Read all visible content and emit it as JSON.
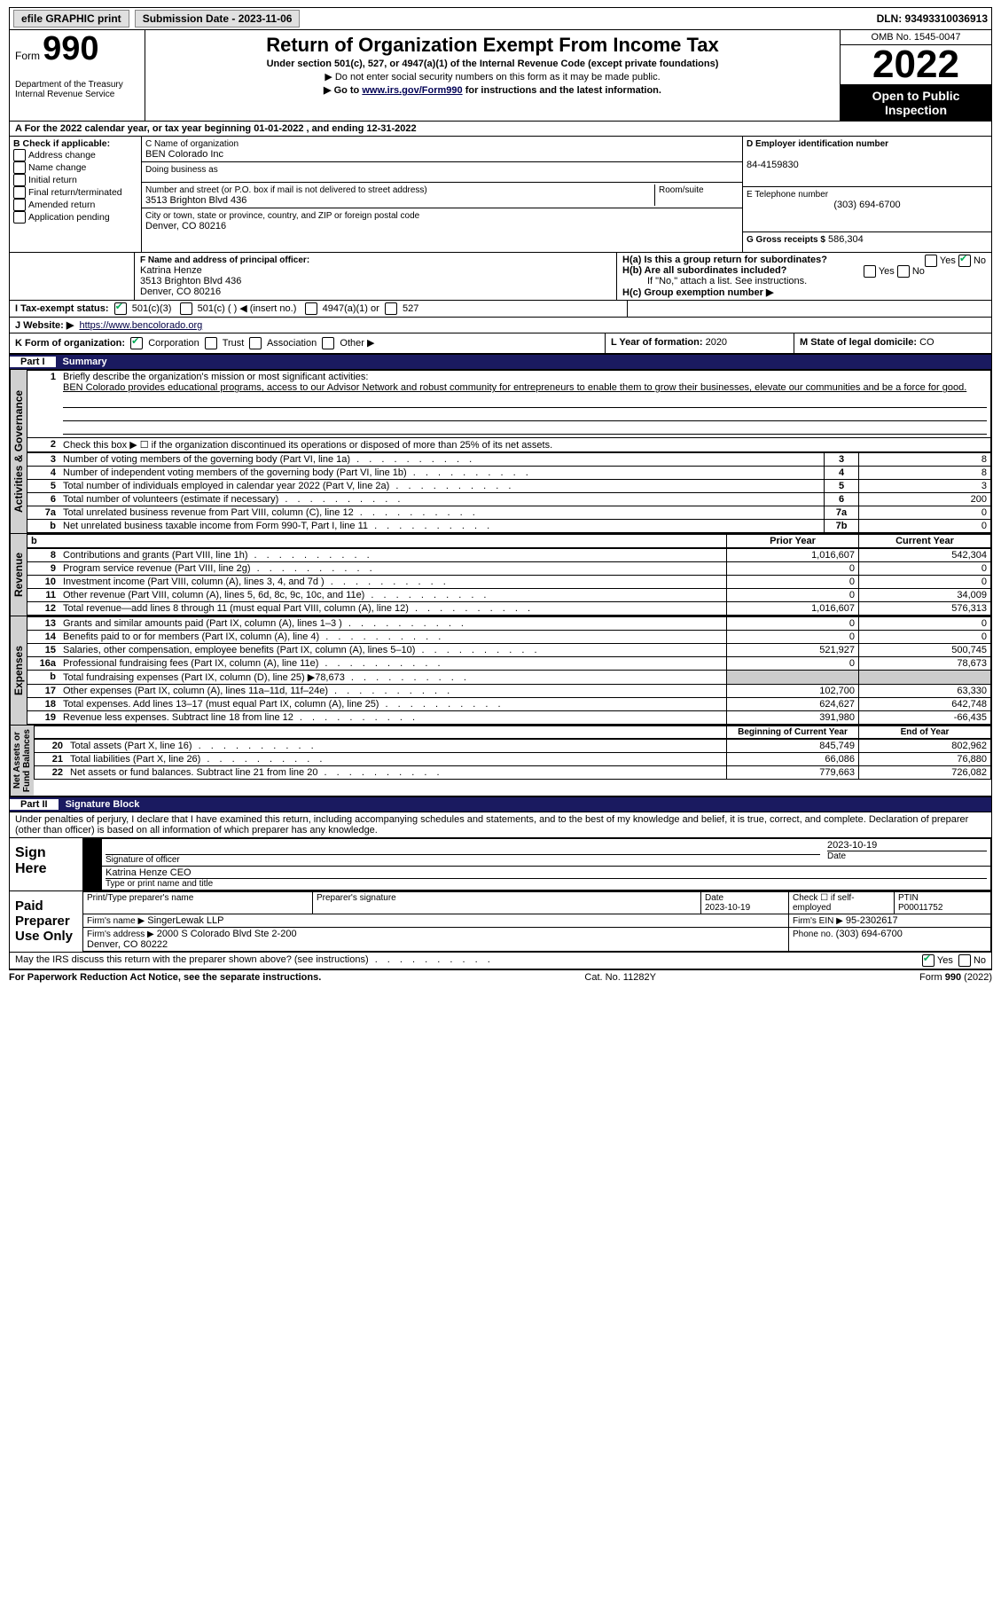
{
  "topbar": {
    "efile": "efile GRAPHIC print - ",
    "submission": "Submission Date - 2023-11-06",
    "dln": "DLN: 93493310036913"
  },
  "header": {
    "form_word": "Form",
    "form_no": "990",
    "title": "Return of Organization Exempt From Income Tax",
    "sub1": "Under section 501(c), 527, or 4947(a)(1) of the Internal Revenue Code (except private foundations)",
    "sub2": "▶ Do not enter social security numbers on this form as it may be made public.",
    "sub3_pre": "▶ Go to ",
    "sub3_link": "www.irs.gov/Form990",
    "sub3_post": " for instructions and the latest information.",
    "dept": "Department of the Treasury\nInternal Revenue Service",
    "omb": "OMB No. 1545-0047",
    "year": "2022",
    "otp": "Open to Public Inspection"
  },
  "A_line": "A For the 2022 calendar year, or tax year beginning 01-01-2022   , and ending 12-31-2022",
  "B": {
    "label": "B Check if applicable:",
    "opts": [
      "Address change",
      "Name change",
      "Initial return",
      "Final return/terminated",
      "Amended return",
      "Application pending"
    ]
  },
  "C": {
    "name_label": "C Name of organization",
    "name": "BEN Colorado Inc",
    "dba_label": "Doing business as",
    "dba": "",
    "addr_label": "Number and street (or P.O. box if mail is not delivered to street address)",
    "room_label": "Room/suite",
    "addr": "3513 Brighton Blvd 436",
    "city_label": "City or town, state or province, country, and ZIP or foreign postal code",
    "city": "Denver, CO  80216"
  },
  "D": {
    "label": "D Employer identification number",
    "val": "84-4159830"
  },
  "E": {
    "label": "E Telephone number",
    "val": "(303) 694-6700"
  },
  "G": {
    "label": "G Gross receipts $",
    "val": "586,304"
  },
  "F": {
    "label": "F  Name and address of principal officer:",
    "lines": [
      "Katrina Henze",
      "3513 Brighton Blvd 436",
      "Denver, CO  80216"
    ]
  },
  "H": {
    "a": "H(a)  Is this a group return for subordinates?",
    "b": "H(b)  Are all subordinates included?",
    "bnote": "If \"No,\" attach a list. See instructions.",
    "c": "H(c)  Group exemption number ▶"
  },
  "I": {
    "label": "I   Tax-exempt status:",
    "opts": [
      "501(c)(3)",
      "501(c) (    ) ◀ (insert no.)",
      "4947(a)(1) or",
      "527"
    ]
  },
  "J": {
    "label": "J   Website: ▶",
    "val": "https://www.bencolorado.org"
  },
  "K": {
    "label": "K Form of organization:",
    "opts": [
      "Corporation",
      "Trust",
      "Association",
      "Other ▶"
    ]
  },
  "L": {
    "label": "L Year of formation:",
    "val": "2020"
  },
  "M": {
    "label": "M State of legal domicile:",
    "val": "CO"
  },
  "part1": {
    "num": "Part I",
    "title": "Summary"
  },
  "summary": {
    "q1": "Briefly describe the organization's mission or most significant activities:",
    "q1v": "BEN Colorado provides educational programs, access to our Advisor Network and robust community for entrepreneurs to enable them to grow their businesses, elevate our communities and be a force for good.",
    "q2": "Check this box ▶ ☐  if the organization discontinued its operations or disposed of more than 25% of its net assets.",
    "lines": [
      {
        "n": "3",
        "t": "Number of voting members of the governing body (Part VI, line 1a)",
        "box": "3",
        "v": "8"
      },
      {
        "n": "4",
        "t": "Number of independent voting members of the governing body (Part VI, line 1b)",
        "box": "4",
        "v": "8"
      },
      {
        "n": "5",
        "t": "Total number of individuals employed in calendar year 2022 (Part V, line 2a)",
        "box": "5",
        "v": "3"
      },
      {
        "n": "6",
        "t": "Total number of volunteers (estimate if necessary)",
        "box": "6",
        "v": "200"
      },
      {
        "n": "7a",
        "t": "Total unrelated business revenue from Part VIII, column (C), line 12",
        "box": "7a",
        "v": "0"
      },
      {
        "n": "b",
        "t": "Net unrelated business taxable income from Form 990-T, Part I, line 11",
        "box": "7b",
        "v": "0"
      }
    ],
    "pcol": "Prior Year",
    "ccol": "Current Year",
    "rev": [
      {
        "n": "8",
        "t": "Contributions and grants (Part VIII, line 1h)",
        "p": "1,016,607",
        "c": "542,304"
      },
      {
        "n": "9",
        "t": "Program service revenue (Part VIII, line 2g)",
        "p": "0",
        "c": "0"
      },
      {
        "n": "10",
        "t": "Investment income (Part VIII, column (A), lines 3, 4, and 7d )",
        "p": "0",
        "c": "0"
      },
      {
        "n": "11",
        "t": "Other revenue (Part VIII, column (A), lines 5, 6d, 8c, 9c, 10c, and 11e)",
        "p": "0",
        "c": "34,009"
      },
      {
        "n": "12",
        "t": "Total revenue—add lines 8 through 11 (must equal Part VIII, column (A), line 12)",
        "p": "1,016,607",
        "c": "576,313"
      }
    ],
    "exp": [
      {
        "n": "13",
        "t": "Grants and similar amounts paid (Part IX, column (A), lines 1–3 )",
        "p": "0",
        "c": "0"
      },
      {
        "n": "14",
        "t": "Benefits paid to or for members (Part IX, column (A), line 4)",
        "p": "0",
        "c": "0"
      },
      {
        "n": "15",
        "t": "Salaries, other compensation, employee benefits (Part IX, column (A), lines 5–10)",
        "p": "521,927",
        "c": "500,745"
      },
      {
        "n": "16a",
        "t": "Professional fundraising fees (Part IX, column (A), line 11e)",
        "p": "0",
        "c": "78,673"
      },
      {
        "n": "b",
        "t": "Total fundraising expenses (Part IX, column (D), line 25) ▶78,673",
        "p": "",
        "c": "",
        "shaded": true
      },
      {
        "n": "17",
        "t": "Other expenses (Part IX, column (A), lines 11a–11d, 11f–24e)",
        "p": "102,700",
        "c": "63,330"
      },
      {
        "n": "18",
        "t": "Total expenses. Add lines 13–17 (must equal Part IX, column (A), line 25)",
        "p": "624,627",
        "c": "642,748"
      },
      {
        "n": "19",
        "t": "Revenue less expenses. Subtract line 18 from line 12",
        "p": "391,980",
        "c": "-66,435"
      }
    ],
    "bcol": "Beginning of Current Year",
    "ecol": "End of Year",
    "net": [
      {
        "n": "20",
        "t": "Total assets (Part X, line 16)",
        "p": "845,749",
        "c": "802,962"
      },
      {
        "n": "21",
        "t": "Total liabilities (Part X, line 26)",
        "p": "66,086",
        "c": "76,880"
      },
      {
        "n": "22",
        "t": "Net assets or fund balances. Subtract line 21 from line 20",
        "p": "779,663",
        "c": "726,082"
      }
    ],
    "vlabels": {
      "ag": "Activities & Governance",
      "rv": "Revenue",
      "ex": "Expenses",
      "na": "Net Assets or\nFund Balances"
    }
  },
  "part2": {
    "num": "Part II",
    "title": "Signature Block"
  },
  "sig": {
    "decl": "Under penalties of perjury, I declare that I have examined this return, including accompanying schedules and statements, and to the best of my knowledge and belief, it is true, correct, and complete. Declaration of preparer (other than officer) is based on all information of which preparer has any knowledge.",
    "sign_here": "Sign Here",
    "sig_officer": "Signature of officer",
    "date1": "2023-10-19",
    "name_title": "Katrina Henze  CEO",
    "type_print": "Type or print name and title",
    "paid": "Paid Preparer Use Only",
    "pp_name": "Print/Type preparer's name",
    "pp_sig": "Preparer's signature",
    "pp_date_l": "Date",
    "pp_date": "2023-10-19",
    "pp_check": "Check ☐ if self-employed",
    "ptin_l": "PTIN",
    "ptin": "P00011752",
    "firm_name_l": "Firm's name   ▶",
    "firm_name": "SingerLewak LLP",
    "firm_ein_l": "Firm's EIN ▶",
    "firm_ein": "95-2302617",
    "firm_addr_l": "Firm's address ▶",
    "firm_addr": "2000 S Colorado Blvd Ste 2-200\nDenver, CO  80222",
    "phone_l": "Phone no.",
    "phone": "(303) 694-6700",
    "discuss": "May the IRS discuss this return with the preparer shown above? (see instructions)"
  },
  "footer": {
    "left": "For Paperwork Reduction Act Notice, see the separate instructions.",
    "mid": "Cat. No. 11282Y",
    "right": "Form 990 (2022)"
  }
}
